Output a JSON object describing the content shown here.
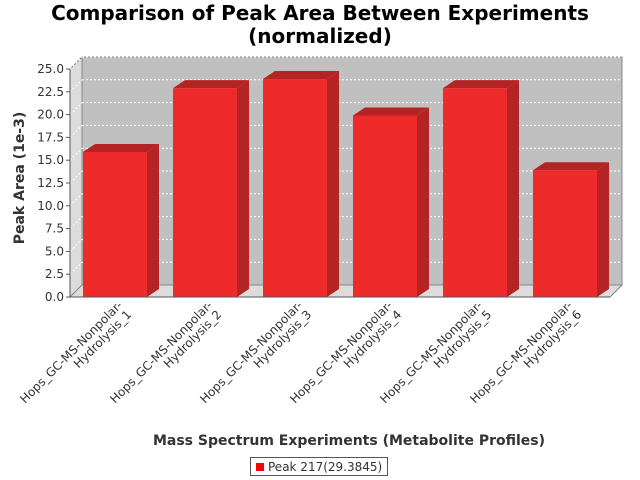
{
  "chart_data": {
    "type": "bar",
    "title": [
      "Comparison of Peak Area Between Experiments",
      "(normalized)"
    ],
    "xlabel": "Mass Spectrum Experiments (Metabolite Profiles)",
    "ylabel": "Peak Area (1e-3)",
    "categories": [
      [
        "Hops_GC-MS-Nonpolar-",
        "Hydrolysis_1"
      ],
      [
        "Hops_GC-MS-Nonpolar-",
        "Hydrolysis_2"
      ],
      [
        "Hops_GC-MS-Nonpolar-",
        "Hydrolysis_3"
      ],
      [
        "Hops_GC-MS-Nonpolar-",
        "Hydrolysis_4"
      ],
      [
        "Hops_GC-MS-Nonpolar-",
        "Hydrolysis_5"
      ],
      [
        "Hops_GC-MS-Nonpolar-",
        "Hydrolysis_6"
      ]
    ],
    "series": [
      {
        "name": "Peak 217(29.3845)",
        "values": [
          15.9,
          22.9,
          23.9,
          19.9,
          22.9,
          13.9
        ]
      }
    ],
    "ylim": [
      0,
      25
    ],
    "yticks": [
      "0.0",
      "2.5",
      "5.0",
      "7.5",
      "10.0",
      "12.5",
      "15.0",
      "17.5",
      "20.0",
      "22.5",
      "25.0"
    ],
    "grid": true,
    "legend_position": "bottom",
    "colors": {
      "bar": "#ee2a2a",
      "bar_top": "#b42424",
      "bar_side": "#b42424",
      "plot_bg": "#c0c0c0",
      "wall": "#dcdcdc",
      "legend_swatch": "#ff0000"
    }
  }
}
